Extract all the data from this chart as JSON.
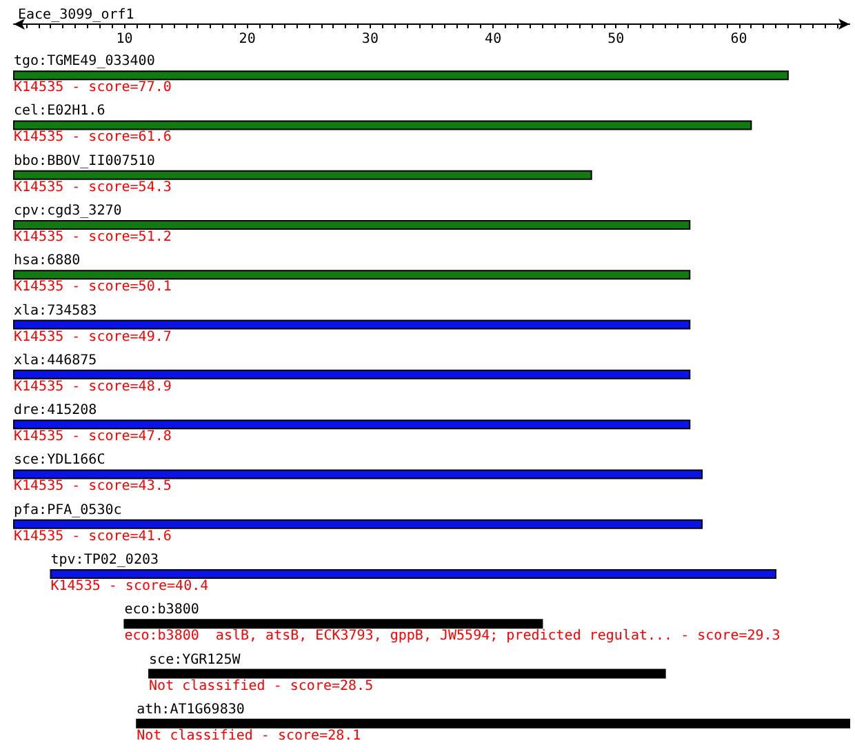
{
  "chart_data": {
    "type": "bar",
    "orientation": "horizontal",
    "title": "Eace_3099_orf1",
    "categories": [
      "tgo:TGME49_033400",
      "cel:E02H1.6",
      "bbo:BBOV_II007510",
      "cpv:cgd3_3270",
      "hsa:6880",
      "xla:734583",
      "xla:446875",
      "dre:415208",
      "sce:YDL166C",
      "pfa:PFA_0530c",
      "tpv:TP02_0203",
      "eco:b3800",
      "sce:YGR125W",
      "ath:AT1G69830"
    ],
    "base": [
      1,
      1,
      1,
      1,
      1,
      1,
      1,
      1,
      1,
      1,
      4,
      10,
      12,
      11
    ],
    "values": [
      63,
      60,
      47,
      55,
      55,
      55,
      55,
      55,
      56,
      56,
      59,
      34,
      42,
      58
    ],
    "colors": [
      "#117a11",
      "#117a11",
      "#117a11",
      "#117a11",
      "#117a11",
      "#0a14e6",
      "#0a14e6",
      "#0a14e6",
      "#0a14e6",
      "#0a14e6",
      "#0a14e6",
      "#000000",
      "#000000",
      "#000000"
    ],
    "xlim": [
      1,
      69
    ],
    "xticks": [
      {
        "value": 2,
        "label": null
      },
      {
        "value": 3,
        "label": null
      },
      {
        "value": 4,
        "label": null
      },
      {
        "value": 5,
        "label": null
      },
      {
        "value": 6,
        "label": null
      },
      {
        "value": 7,
        "label": null
      },
      {
        "value": 8,
        "label": null
      },
      {
        "value": 9,
        "label": null
      },
      10,
      {
        "value": 11,
        "label": null
      },
      {
        "value": 12,
        "label": null
      },
      {
        "value": 13,
        "label": null
      },
      {
        "value": 14,
        "label": null
      },
      {
        "value": 15,
        "label": null
      },
      {
        "value": 16,
        "label": null
      },
      {
        "value": 17,
        "label": null
      },
      {
        "value": 18,
        "label": null
      },
      {
        "value": 19,
        "label": null
      },
      20,
      {
        "value": 21,
        "label": null
      },
      {
        "value": 22,
        "label": null
      },
      {
        "value": 23,
        "label": null
      },
      {
        "value": 24,
        "label": null
      },
      {
        "value": 25,
        "label": null
      },
      {
        "value": 26,
        "label": null
      },
      {
        "value": 27,
        "label": null
      },
      {
        "value": 28,
        "label": null
      },
      {
        "value": 29,
        "label": null
      },
      30,
      {
        "value": 31,
        "label": null
      },
      {
        "value": 32,
        "label": null
      },
      {
        "value": 33,
        "label": null
      },
      {
        "value": 34,
        "label": null
      },
      {
        "value": 35,
        "label": null
      },
      {
        "value": 36,
        "label": null
      },
      {
        "value": 37,
        "label": null
      },
      {
        "value": 38,
        "label": null
      },
      {
        "value": 39,
        "label": null
      },
      40,
      {
        "value": 41,
        "label": null
      },
      {
        "value": 42,
        "label": null
      },
      {
        "value": 43,
        "label": null
      },
      {
        "value": 44,
        "label": null
      },
      {
        "value": 45,
        "label": null
      },
      {
        "value": 46,
        "label": null
      },
      {
        "value": 47,
        "label": null
      },
      {
        "value": 48,
        "label": null
      },
      {
        "value": 49,
        "label": null
      },
      50,
      {
        "value": 51,
        "label": null
      },
      {
        "value": 52,
        "label": null
      },
      {
        "value": 53,
        "label": null
      },
      {
        "value": 54,
        "label": null
      },
      {
        "value": 55,
        "label": null
      },
      {
        "value": 56,
        "label": null
      },
      {
        "value": 57,
        "label": null
      },
      {
        "value": 58,
        "label": null
      },
      {
        "value": 59,
        "label": null
      },
      60,
      {
        "value": 61,
        "label": null
      },
      {
        "value": 62,
        "label": null
      },
      {
        "value": 63,
        "label": null
      },
      {
        "value": 64,
        "label": null
      },
      {
        "value": 65,
        "label": null
      },
      {
        "value": 66,
        "label": null
      },
      {
        "value": 67,
        "label": null
      },
      {
        "value": 68,
        "label": null
      }
    ],
    "annotations": [
      "K14535 - score=77.0",
      "K14535 - score=61.6",
      "K14535 - score=54.3",
      "K14535 - score=51.2",
      "K14535 - score=50.1",
      "K14535 - score=49.7",
      "K14535 - score=48.9",
      "K14535 - score=47.8",
      "K14535 - score=43.5",
      "K14535 - score=41.6",
      "K14535 - score=40.4",
      "eco:b3800  aslB, atsB, ECK3793, gppB, JW5594; predicted regulat... - score=29.3",
      "Not classified - score=28.5",
      "Not classified - score=28.1"
    ]
  }
}
